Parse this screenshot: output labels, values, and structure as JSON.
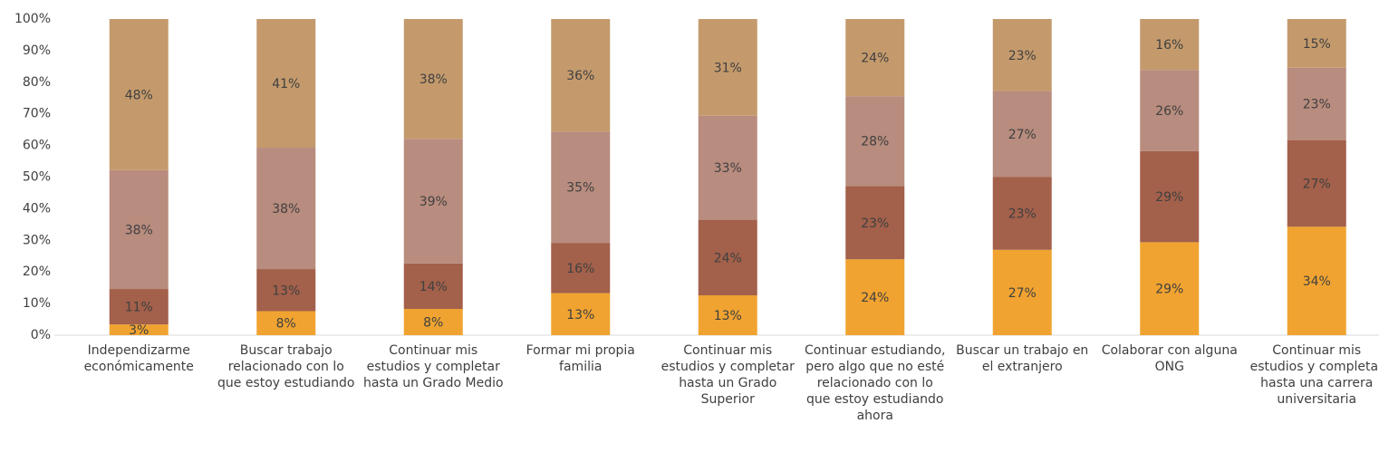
{
  "chart_data": {
    "type": "stacked_bar",
    "categories": [
      "Independizarme económicamente",
      "Buscar trabajo relacionado con lo que estoy estudiando",
      "Continuar mis estudios y completar hasta un Grado Medio",
      "Formar mi propia familia",
      "Continuar mis estudios y completar hasta un Grado Superior",
      "Continuar estudiando, pero algo que no esté relacionado con lo que estoy estudiando ahora",
      "Buscar un trabajo en el extranjero",
      "Colaborar con alguna ONG",
      "Continuar mis estudios y completar hasta una carrera universitaria"
    ],
    "series": [
      {
        "color": "#f0a330",
        "values": [
          3.4,
          7.6,
          8.3,
          13.3,
          12.6,
          24.0,
          27.0,
          29.4,
          34.3
        ],
        "value_labels": [
          "3%",
          "8%",
          "8%",
          "13%",
          "13%",
          "24%",
          "27%",
          "29%",
          "34%"
        ]
      },
      {
        "color": "#a3604a",
        "values": [
          11.2,
          13.3,
          14.4,
          15.9,
          23.9,
          23.2,
          23.0,
          28.8,
          27.4
        ],
        "value_labels": [
          "11%",
          "13%",
          "14%",
          "16%",
          "24%",
          "23%",
          "23%",
          "29%",
          "27%"
        ]
      },
      {
        "color": "#b88c7e",
        "values": [
          37.6,
          38.4,
          39.4,
          35.2,
          32.9,
          28.4,
          27.2,
          25.7,
          22.9
        ],
        "value_labels": [
          "38%",
          "38%",
          "39%",
          "35%",
          "33%",
          "28%",
          "27%",
          "26%",
          "23%"
        ]
      },
      {
        "color": "#c49a6c",
        "values": [
          47.8,
          40.7,
          37.9,
          35.6,
          30.6,
          24.4,
          22.8,
          16.1,
          15.4
        ],
        "value_labels": [
          "48%",
          "41%",
          "38%",
          "36%",
          "31%",
          "24%",
          "23%",
          "16%",
          "15%"
        ]
      }
    ],
    "ylim": [
      0,
      100
    ],
    "yticks": [
      {
        "value": 0,
        "label": "0%"
      },
      {
        "value": 10,
        "label": "10%"
      },
      {
        "value": 20,
        "label": "20%"
      },
      {
        "value": 30,
        "label": "30%"
      },
      {
        "value": 40,
        "label": "40%"
      },
      {
        "value": 50,
        "label": "50%"
      },
      {
        "value": 60,
        "label": "60%"
      },
      {
        "value": 70,
        "label": "70%"
      },
      {
        "value": 80,
        "label": "80%"
      },
      {
        "value": 90,
        "label": "90%"
      },
      {
        "value": 100,
        "label": "100%"
      }
    ]
  }
}
